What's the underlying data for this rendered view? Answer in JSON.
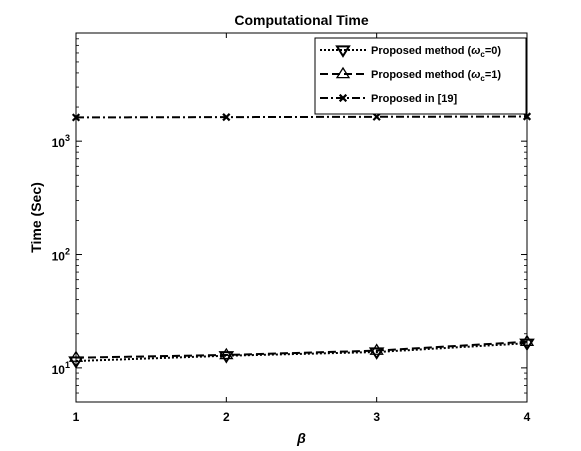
{
  "chart_data": {
    "type": "line",
    "title": "Computational Time",
    "xlabel": "β",
    "ylabel": "Time (Sec)",
    "x": [
      1,
      2,
      3,
      4
    ],
    "xticks": [
      "1",
      "2",
      "3",
      "4"
    ],
    "yscale": "log",
    "ylim": [
      5,
      9000
    ],
    "yticks": [
      {
        "value": 10,
        "base": "10",
        "exp": "1"
      },
      {
        "value": 100,
        "base": "10",
        "exp": "2"
      },
      {
        "value": 1000,
        "base": "10",
        "exp": "3"
      }
    ],
    "grid": false,
    "legend_position": "top-right",
    "series": [
      {
        "name": "Proposed method (ωc=0)",
        "legend": {
          "pre": "Proposed method (",
          "sym": "ω",
          "sub": "c",
          "post": "=0)"
        },
        "values": [
          11.5,
          12.8,
          13.8,
          16.5
        ],
        "marker": "triangle-down",
        "linestyle": "dotted",
        "color": "#000000"
      },
      {
        "name": "Proposed method (ωc=1)",
        "legend": {
          "pre": "Proposed method (",
          "sym": "ω",
          "sub": "c",
          "post": "=1)"
        },
        "values": [
          12.3,
          13.0,
          14.2,
          17.0
        ],
        "marker": "triangle-up",
        "linestyle": "dashed",
        "color": "#000000"
      },
      {
        "name": "Proposed in [19]",
        "legend": {
          "pre": "Proposed in [19]",
          "sym": "",
          "sub": "",
          "post": ""
        },
        "values": [
          1620,
          1630,
          1640,
          1650
        ],
        "marker": "x",
        "linestyle": "dashdot",
        "color": "#000000"
      }
    ]
  }
}
